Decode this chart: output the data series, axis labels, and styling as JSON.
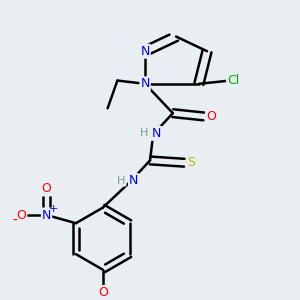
{
  "background_color": "#e8eef2",
  "bond_color": "#000000",
  "bond_width": 1.8,
  "font_size": 9,
  "colors": {
    "C": "#000000",
    "N": "#0000ff",
    "O": "#ff0000",
    "S": "#bbbb00",
    "Cl": "#00aa00",
    "H_label": "#7a9a9a"
  }
}
